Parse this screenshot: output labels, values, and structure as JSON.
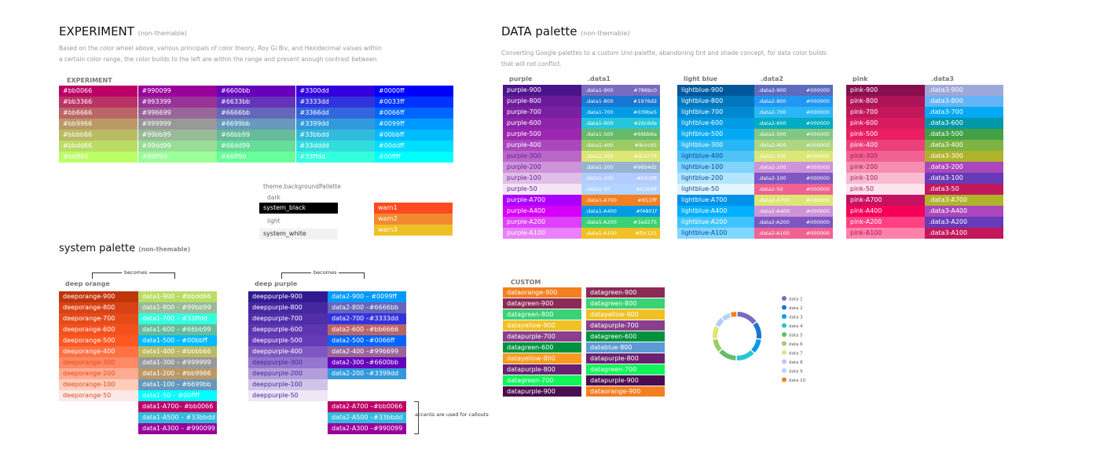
{
  "experiment": {
    "title": "EXPERIMENT",
    "note": "(non-themable)",
    "desc": [
      "Based on the color wheel above, various principals of color theory, Roy Gi Biv, and Hexidecimal values within",
      "a certain color range, the color builds to the left are within the range and present anough contrast between"
    ],
    "table_label": "EXPERIMENT",
    "columns": [
      [
        "#bb0066",
        "#bb3366",
        "#bb6666",
        "#bb9966",
        "#bbbb66",
        "#bbdd66",
        "#bbff66"
      ],
      [
        "#990099",
        "#993399",
        "#996699",
        "#999999",
        "#99bb99",
        "#99dd99",
        "#99ff99"
      ],
      [
        "#6600bb",
        "#6633bb",
        "#6666bb",
        "#6699bb",
        "#66bb99",
        "#66dd99",
        "#66ff99"
      ],
      [
        "#3300dd",
        "#3333dd",
        "#3366dd",
        "#3399dd",
        "#33bbdd",
        "#33dddd",
        "#33ffdd"
      ],
      [
        "#0000ff",
        "#0033ff",
        "#0066ff",
        "#0099ff",
        "#00bbff",
        "#00ddff",
        "#00ffff"
      ]
    ]
  },
  "theme": {
    "title": "theme.backgroundPallette",
    "dark": "dark",
    "black": "system_black",
    "light": "light",
    "white": "system_white",
    "warn": [
      {
        "label": "warn1",
        "color": "#ff4a1f"
      },
      {
        "label": "warn2",
        "color": "#f28a30"
      },
      {
        "label": "warn3",
        "color": "#efbf26"
      }
    ]
  },
  "data_palette": {
    "title": "DATA palette",
    "note": "(non-themable)",
    "desc": [
      "Converting Google palettes to a custom Uno palette, abandoning tint and shade concept, for data color builds",
      "that will not conflict."
    ],
    "groups": [
      {
        "name": "purple",
        "data": ".data1",
        "rows": [
          [
            "purple-900",
            "#4a148c",
            "#fff",
            ".data1-900",
            "#786bc0",
            "#786bc0"
          ],
          [
            "purple-800",
            "#6a1b9a",
            "#fff",
            ".data1-800",
            "#1976d2",
            "#1976d2"
          ],
          [
            "purple-700",
            "#7b1fa2",
            "#fff",
            ".data1-700",
            "#039be5",
            "#039be5"
          ],
          [
            "purple-600",
            "#8e24aa",
            "#fff",
            ".data1-600",
            "#26c6da",
            "#26c6da"
          ],
          [
            "purple-500",
            "#9c27b0",
            "#fff",
            ".data1-500",
            "#66bb6a",
            "#66bb6a"
          ],
          [
            "purple-400",
            "#ab47bc",
            "#fff",
            ".data1-400",
            "#9ccc65",
            "#9ccc65"
          ],
          [
            "purple-300",
            "#ba68c8",
            "#6a1b9a",
            ".data1-300",
            "#dce775",
            "#dce775"
          ],
          [
            "purple-200",
            "#ce93d8",
            "#6a1b9a",
            ".data1-200",
            "#96b4d2",
            "#96b4d2"
          ],
          [
            "purple-100",
            "#e1bee7",
            "#6a1b9a",
            ".data1-100",
            "#b3cbff",
            "#b3cbff"
          ],
          [
            "purple-50",
            "#f3e5f5",
            "#6a1b9a",
            ".data1-50",
            "#b3d4ff",
            "#b3d4ff"
          ],
          [
            "purple-A700",
            "#aa00ff",
            "#fff",
            ".data1-A700",
            "#651fff",
            "#f47f20"
          ],
          [
            "purple-A400",
            "#d500f9",
            "#fff",
            ".data1-A400",
            "#f4801f",
            "#039be5"
          ],
          [
            "purple-A200",
            "#e040fb",
            "#fff",
            ".data1-A200",
            "#3ad275",
            "#3ad275"
          ],
          [
            "purple-A100",
            "#ea80fc",
            "#fff",
            ".data1-A100",
            "#f0c125",
            "#f0c125"
          ]
        ]
      },
      {
        "name": "light blue",
        "data": ".data2",
        "rows": [
          [
            "lightblue-900",
            "#01579b",
            "#fff",
            ".data2-900",
            "#000000",
            "#5c6bc0"
          ],
          [
            "lightblue-800",
            "#0277bd",
            "#fff",
            ".data2-800",
            "#000000",
            "#2196f3"
          ],
          [
            "lightblue-700",
            "#0288d1",
            "#fff",
            ".data2-700",
            "#000000",
            "#29b6f6"
          ],
          [
            "lightblue-600",
            "#039be5",
            "#fff",
            ".data2-600",
            "#000000",
            "#00acc1"
          ],
          [
            "lightblue-500",
            "#03a9f4",
            "#fff",
            ".data2-500",
            "#000000",
            "#81c784"
          ],
          [
            "lightblue-300",
            "#29b6f6",
            "#fff",
            ".data2-400",
            "#000000",
            "#aed581"
          ],
          [
            "lightblue-400",
            "#4fc3f7",
            "#0d47a1",
            ".data2-300",
            "#000000",
            "#dce775"
          ],
          [
            "lightblue-100",
            "#81d4fa",
            "#0d47a1",
            ".data2-200",
            "#000000",
            "#ce93d8"
          ],
          [
            "lightblue-200",
            "#b3e5fc",
            "#0d47a1",
            ".data2-100",
            "#000000",
            "#7e57c2"
          ],
          [
            "lightblue-50",
            "#e1f5fe",
            "#0d47a1",
            ".data2-50",
            "#000000",
            "#f06292"
          ],
          [
            "lightblue-A700",
            "#0091ea",
            "#fff",
            ".data2-A700",
            "#000000",
            "#dce775"
          ],
          [
            "lightblue-A400",
            "#00b0ff",
            "#fff",
            ".data2-A400",
            "#000000",
            "#ce93d8"
          ],
          [
            "lightblue-A200",
            "#40c4ff",
            "#fff",
            ".data2-A200",
            "#000000",
            "#7e57c2"
          ],
          [
            "lightblue-A100",
            "#80d8ff",
            "#0d47a1",
            ".data2-A100",
            "#000000",
            "#f06292"
          ]
        ]
      },
      {
        "name": "pink",
        "data": ".data3",
        "rows": [
          [
            "pink-900",
            "#880e4f",
            "#fff",
            ".data3-900",
            "",
            "#9fa8da"
          ],
          [
            "pink-800",
            "#ad1457",
            "#fff",
            ".data3-800",
            "",
            "#64b5f6"
          ],
          [
            "pink-700",
            "#c2185b",
            "#fff",
            ".data3-700",
            "",
            "#03a9f4"
          ],
          [
            "pink-600",
            "#d81b60",
            "#fff",
            ".data3-600",
            "",
            "#0097a7"
          ],
          [
            "pink-500",
            "#e91e63",
            "#fff",
            ".data3-500",
            "",
            "#43a047"
          ],
          [
            "pink-400",
            "#ec407a",
            "#fff",
            ".data3-400",
            "",
            "#7cb342"
          ],
          [
            "pink-300",
            "#f06292",
            "#ad1457",
            ".data3-300",
            "",
            "#afb42b"
          ],
          [
            "pink-200",
            "#f48fb1",
            "#ad1457",
            ".data3-200",
            "",
            "#ab47bc"
          ],
          [
            "pink-100",
            "#f8bbd0",
            "#ad1457",
            ".data3-100",
            "",
            "#673ab7"
          ],
          [
            "pink-50",
            "#fce4ec",
            "#ad1457",
            ".data3-50",
            "",
            "#c2185b"
          ],
          [
            "pink-A700",
            "#c51162",
            "#fff",
            ".data3-A700",
            "",
            "#afb42b"
          ],
          [
            "pink-A400",
            "#f50057",
            "#fff",
            ".data3-A400",
            "",
            "#ab47bc"
          ],
          [
            "pink-A200",
            "#ff4081",
            "#fff",
            ".data3-A200",
            "",
            "#673ab7"
          ],
          [
            "pink-A100",
            "#ff80ab",
            "#ad1457",
            ".data3-A100",
            "",
            "#c2185b"
          ]
        ]
      }
    ]
  },
  "system": {
    "title": "system palette",
    "note": "(non-themable)",
    "becomes": "becomes",
    "callout": "accents are used for callouts",
    "groups": [
      {
        "name": "deep orange",
        "base": [
          [
            "deeporange-900",
            "#bf360c",
            "#fff"
          ],
          [
            "deeporange-800",
            "#d84315",
            "#fff"
          ],
          [
            "deeporange-700",
            "#e64a19",
            "#fff"
          ],
          [
            "deeporange-600",
            "#f4511e",
            "#fff"
          ],
          [
            "deeporange-500",
            "#ff5722",
            "#fff"
          ],
          [
            "deeporange-400",
            "#ff7043",
            "#fff"
          ],
          [
            "deeporange-300",
            "#ff8a65",
            "#e64a19"
          ],
          [
            "deeporange-200",
            "#ffab91",
            "#e64a19"
          ],
          [
            "deeporange-100",
            "#ffccbc",
            "#e64a19"
          ],
          [
            "deeporange-50",
            "#fbe9e7",
            "#e64a19"
          ]
        ],
        "mapped": [
          [
            "data1-900 – #bbdd66",
            "#bbdd66"
          ],
          [
            "data1-800 – #99bb99",
            "#99bb99"
          ],
          [
            "data1-700 – #33ffdd",
            "#33ffdd"
          ],
          [
            "data1-600 – #66bb99",
            "#66bb99"
          ],
          [
            "data1-500 – #00bbff",
            "#00bbff"
          ],
          [
            "data1-400 – #bbbb66",
            "#bbbb66"
          ],
          [
            "data1-300 – #999999",
            "#999999"
          ],
          [
            "data1-200 – #bb9966",
            "#bb9966"
          ],
          [
            "data1-100 – #6699bb",
            "#6699bb"
          ],
          [
            "data1-50   – #00ffff",
            "#00ffff"
          ],
          [
            "data1-A700– #bb0066",
            "#bb0066"
          ],
          [
            "data1-A500 – #33bbdd",
            "#33bbdd"
          ],
          [
            "data1-A300 – #990099",
            "#990099"
          ]
        ]
      },
      {
        "name": "deep purple",
        "base": [
          [
            "deeppurple-900",
            "#311b92",
            "#fff"
          ],
          [
            "deeppurple-800",
            "#4527a0",
            "#fff"
          ],
          [
            "deeppurple-700",
            "#512da8",
            "#fff"
          ],
          [
            "deeppurple-600",
            "#5e35b1",
            "#fff"
          ],
          [
            "deeppurple-500",
            "#673ab7",
            "#fff"
          ],
          [
            "deeppurple-400",
            "#7e57c2",
            "#fff"
          ],
          [
            "deeppurple-300",
            "#9575cd",
            "#4527a0"
          ],
          [
            "deeppurple-200",
            "#b39ddb",
            "#4527a0"
          ],
          [
            "deeppurple-100",
            "#d1c4e9",
            "#4527a0"
          ],
          [
            "deeppurple-50",
            "#ede7f6",
            "#4527a0"
          ]
        ],
        "mapped": [
          [
            "data2-900 – #0099ff",
            "#0099ff"
          ],
          [
            "data2-800 –#6666bb",
            "#6666bb"
          ],
          [
            "data2-700 –#3333dd",
            "#3333dd"
          ],
          [
            "data2-600 –#bb6666",
            "#bb6666"
          ],
          [
            "data2-500 –#0066ff",
            "#0066ff"
          ],
          [
            "data2-400 –#996699",
            "#996699"
          ],
          [
            "data2-300 –#6600bb",
            "#6600bb"
          ],
          [
            "data2-200 –#3399dd",
            "#3399dd"
          ],
          null,
          null,
          [
            "data2-A700 –#bb0066",
            "#bb0066"
          ],
          [
            "data2-A500 –#33bbdd",
            "#33bbdd"
          ],
          [
            "data2-A300 –#990099",
            "#990099"
          ]
        ]
      }
    ]
  },
  "custom": {
    "label": "CUSTOM",
    "columns": [
      [
        [
          "dataorange-900",
          "#f47f20"
        ],
        [
          "datagreen-900",
          "#8b2a55"
        ],
        [
          "datagreen-800",
          "#3ad275"
        ],
        [
          "datayellow-900",
          "#f0c125"
        ],
        [
          "datapurple-700",
          "#8a3f8c"
        ],
        [
          "datagreen-600",
          "#00923f"
        ],
        [
          "datayellow-800",
          "#fb9a1e"
        ],
        [
          "datapurple-800",
          "#6b2170"
        ],
        [
          "datagreen-700",
          "#0ff55a"
        ],
        [
          "datapurple-900",
          "#4a0d4f"
        ]
      ],
      [
        [
          "datagreen-900",
          "#8b2a55"
        ],
        [
          "datagreen-800",
          "#3ad275"
        ],
        [
          "datayellow-900",
          "#f0c125"
        ],
        [
          "datapurple-700",
          "#8a3f8c"
        ],
        [
          "datagreen-600",
          "#00923f"
        ],
        [
          "datablue-800",
          "#5b9bd5"
        ],
        [
          "datapurple-800",
          "#6b2170"
        ],
        [
          "datagreen-700",
          "#0ff55a"
        ],
        [
          "datapurple-900",
          "#4a0d4f"
        ],
        [
          "dataorange-900",
          "#f47f20"
        ]
      ]
    ]
  },
  "chart_data": {
    "type": "pie",
    "donut": true,
    "legend": "right",
    "categories": [
      "data 1",
      "data 2",
      "data 3",
      "data 4",
      "data 5",
      "data 6",
      "data 7",
      "data 8",
      "data 9",
      "data 10"
    ],
    "values": [
      16,
      13,
      11,
      14,
      14,
      10,
      10,
      7,
      7,
      5
    ],
    "colors": [
      "#786bc0",
      "#1976d2",
      "#039be5",
      "#26c6da",
      "#66bb6a",
      "#9ccc65",
      "#dce775",
      "#b3cbff",
      "#b3d4ff",
      "#f47f20"
    ]
  }
}
